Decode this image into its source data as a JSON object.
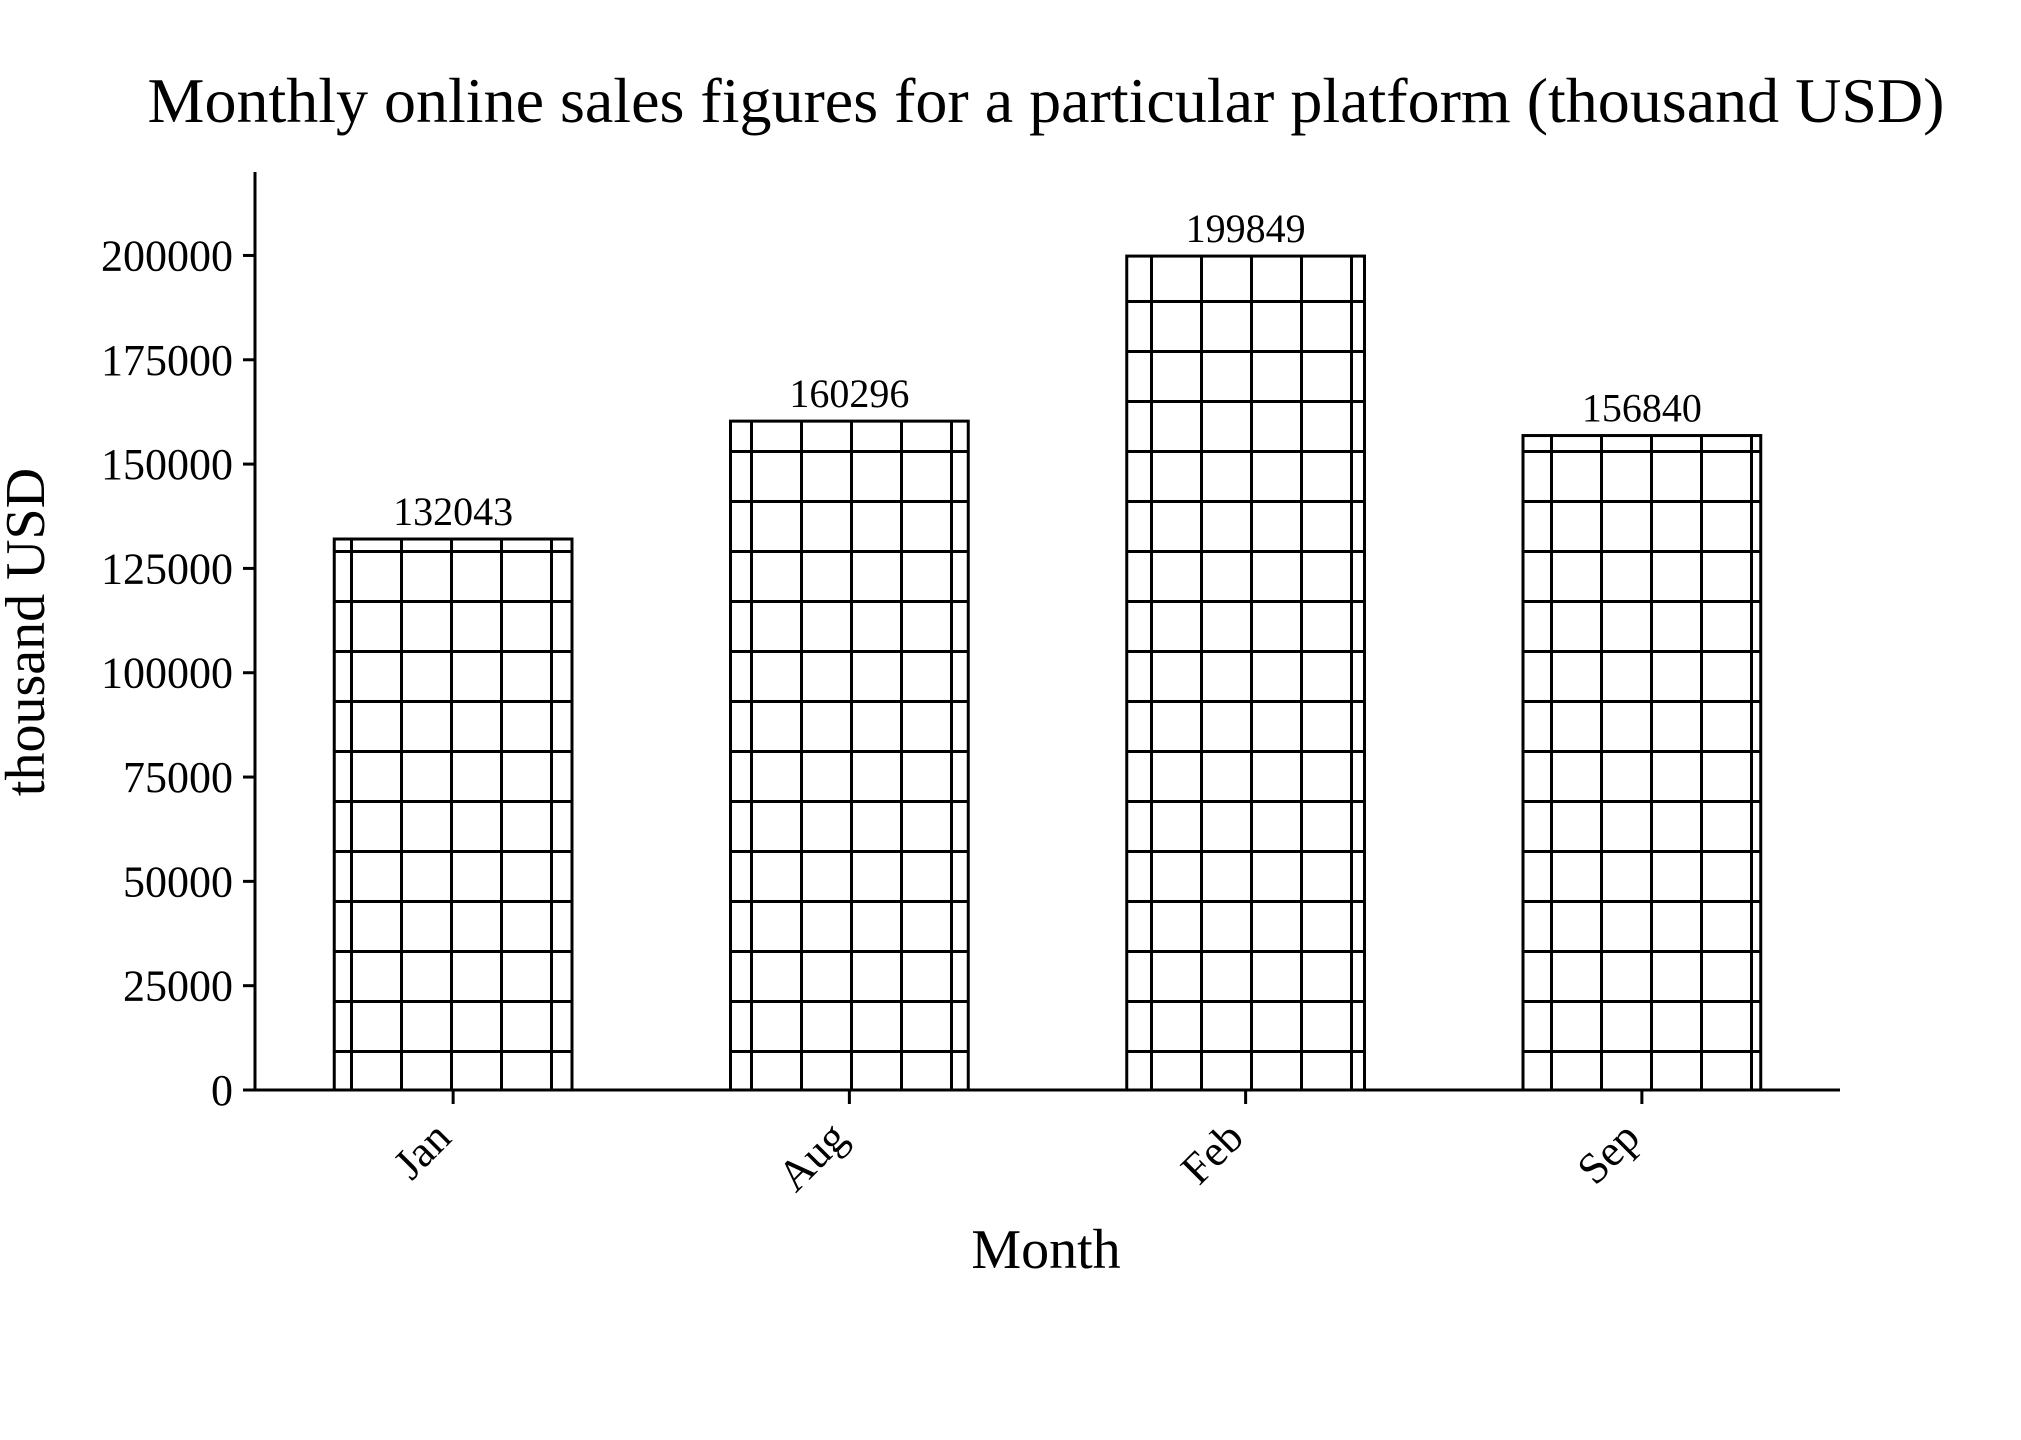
{
  "chart_data": {
    "type": "bar",
    "title": "Monthly online sales figures for a particular platform (thousand USD)",
    "xlabel": "Month",
    "ylabel": "thousand USD",
    "categories": [
      "Jan",
      "Aug",
      "Feb",
      "Sep"
    ],
    "values": [
      132043,
      160296,
      199849,
      156840
    ],
    "data_labels": [
      "132043",
      "160296",
      "199849",
      "156840"
    ],
    "ylim": [
      0,
      220000
    ],
    "yticks": [
      0,
      25000,
      50000,
      75000,
      100000,
      125000,
      150000,
      175000,
      200000
    ],
    "ytick_labels": [
      "0",
      "25000",
      "50000",
      "75000",
      "100000",
      "125000",
      "150000",
      "175000",
      "200000"
    ],
    "grid": false,
    "legend": "none",
    "bar_fill": "grid hatch",
    "colors": {
      "bar_face": "#ffffff",
      "bar_edge": "#000000",
      "hatch": "#000000",
      "axis": "#000000",
      "text": "#000000"
    }
  }
}
